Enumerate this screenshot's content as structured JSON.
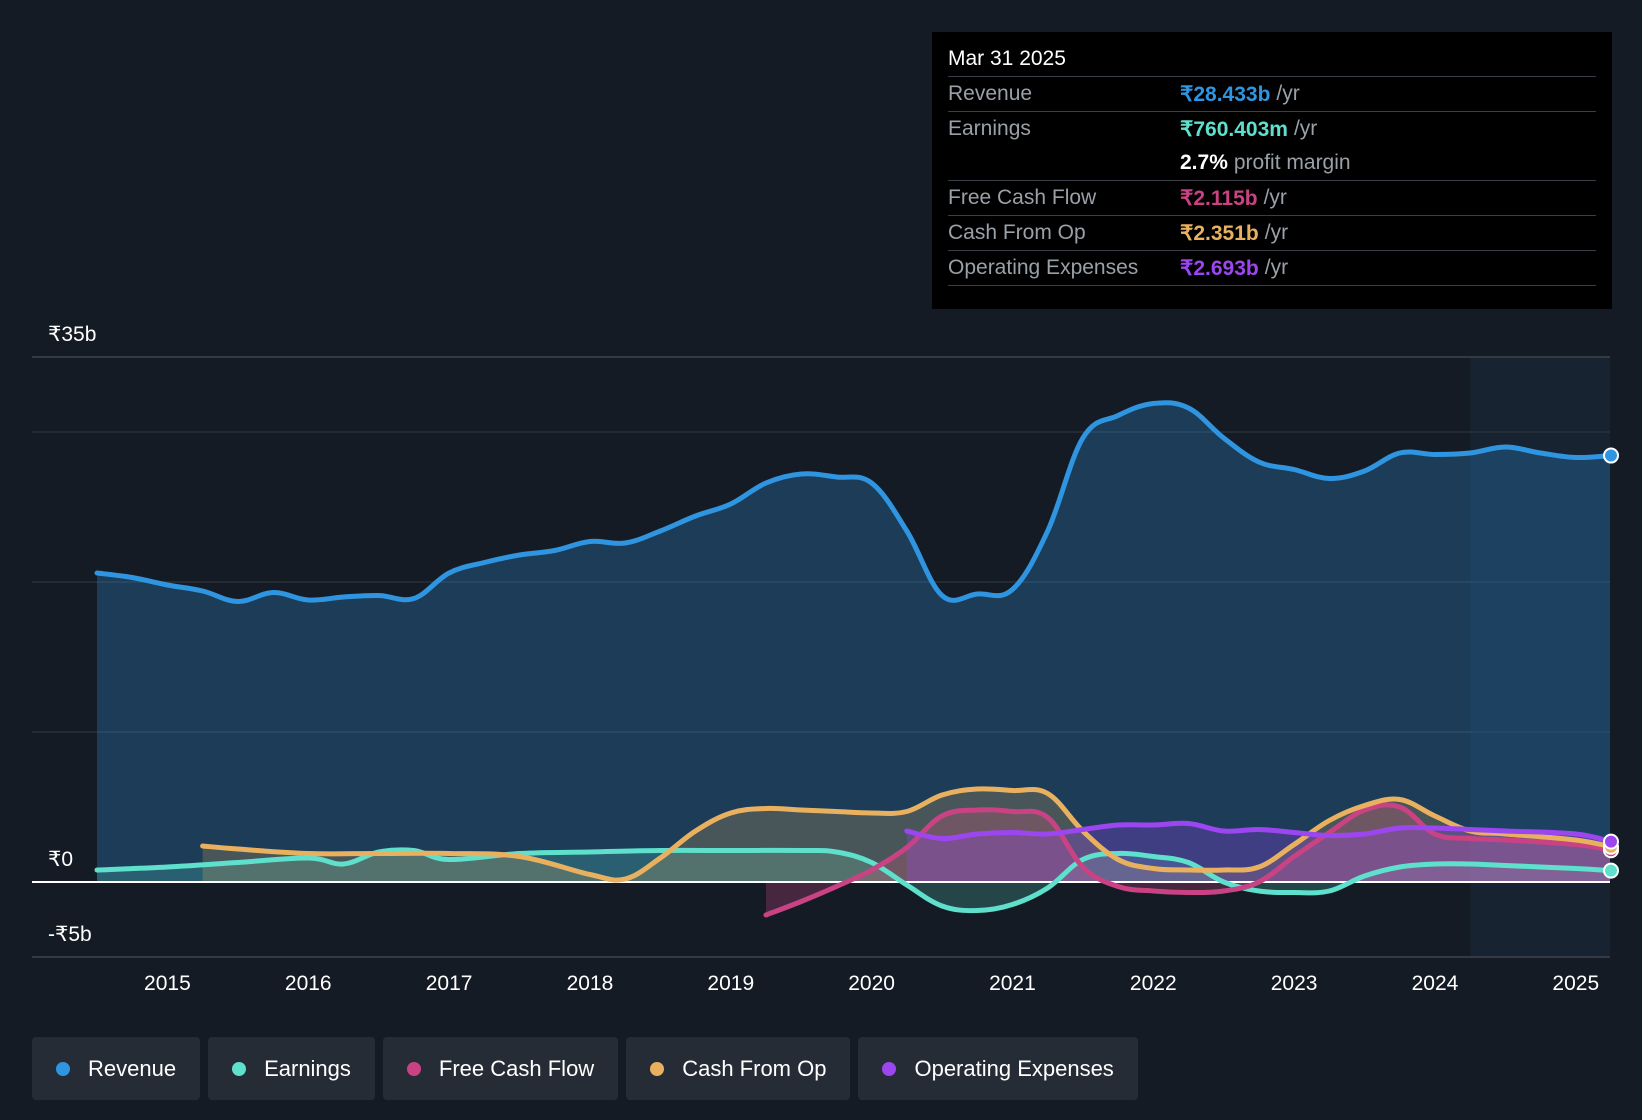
{
  "tooltip": {
    "date": "Mar 31 2025",
    "rows": [
      {
        "label": "Revenue",
        "value": "₹28.433b",
        "unit": "/yr",
        "color": "#2f95e0"
      },
      {
        "label": "Earnings",
        "value": "₹760.403m",
        "unit": "/yr",
        "color": "#5ee0cc"
      },
      {
        "label": "",
        "value": "2.7%",
        "unit": "profit margin",
        "color": "#ffffff"
      },
      {
        "label": "Free Cash Flow",
        "value": "₹2.115b",
        "unit": "/yr",
        "color": "#c94384"
      },
      {
        "label": "Cash From Op",
        "value": "₹2.351b",
        "unit": "/yr",
        "color": "#e9b15f"
      },
      {
        "label": "Operating Expenses",
        "value": "₹2.693b",
        "unit": "/yr",
        "color": "#9c46f0"
      }
    ]
  },
  "legend": [
    {
      "label": "Revenue",
      "color": "#2f95e0"
    },
    {
      "label": "Earnings",
      "color": "#5ee0cc"
    },
    {
      "label": "Free Cash Flow",
      "color": "#c94384"
    },
    {
      "label": "Cash From Op",
      "color": "#e9b15f"
    },
    {
      "label": "Operating Expenses",
      "color": "#9c46f0"
    }
  ],
  "chart_data": {
    "type": "area",
    "title": "",
    "xlabel": "",
    "ylabel": "",
    "ylim": [
      -5,
      35
    ],
    "xlim": [
      2014.5,
      2025.25
    ],
    "y_tick_labels": [
      {
        "value": 35,
        "label": "₹35b"
      },
      {
        "value": 0,
        "label": "₹0"
      },
      {
        "value": -5,
        "label": "-₹5b"
      }
    ],
    "x_tick_labels": [
      {
        "value": 2015,
        "label": "2015"
      },
      {
        "value": 2016,
        "label": "2016"
      },
      {
        "value": 2017,
        "label": "2017"
      },
      {
        "value": 2018,
        "label": "2018"
      },
      {
        "value": 2019,
        "label": "2019"
      },
      {
        "value": 2020,
        "label": "2020"
      },
      {
        "value": 2021,
        "label": "2021"
      },
      {
        "value": 2022,
        "label": "2022"
      },
      {
        "value": 2023,
        "label": "2023"
      },
      {
        "value": 2024,
        "label": "2024"
      },
      {
        "value": 2025,
        "label": "2025"
      }
    ],
    "gridlines": [
      35,
      30,
      20,
      10,
      0,
      -5
    ],
    "forecast_start": 2024.25,
    "series": [
      {
        "name": "Revenue",
        "color": "#2f95e0",
        "x": [
          2014.5,
          2014.75,
          2015.0,
          2015.25,
          2015.5,
          2015.75,
          2016.0,
          2016.25,
          2016.5,
          2016.75,
          2017.0,
          2017.25,
          2017.5,
          2017.75,
          2018.0,
          2018.25,
          2018.5,
          2018.75,
          2019.0,
          2019.25,
          2019.5,
          2019.75,
          2020.0,
          2020.25,
          2020.5,
          2020.75,
          2021.0,
          2021.25,
          2021.5,
          2021.75,
          2022.0,
          2022.25,
          2022.5,
          2022.75,
          2023.0,
          2023.25,
          2023.5,
          2023.75,
          2024.0,
          2024.25,
          2024.5,
          2024.75,
          2025.0,
          2025.25
        ],
        "values": [
          20.6,
          20.3,
          19.8,
          19.4,
          18.7,
          19.3,
          18.8,
          19.0,
          19.1,
          18.9,
          20.6,
          21.3,
          21.8,
          22.1,
          22.7,
          22.6,
          23.4,
          24.4,
          25.2,
          26.6,
          27.2,
          27.0,
          26.6,
          23.4,
          19.1,
          19.2,
          19.5,
          23.4,
          29.6,
          31.1,
          31.9,
          31.6,
          29.6,
          28.0,
          27.5,
          26.9,
          27.4,
          28.6,
          28.5,
          28.6,
          29.0,
          28.6,
          28.3,
          28.43
        ]
      },
      {
        "name": "Earnings",
        "color": "#5ee0cc",
        "x": [
          2014.5,
          2015.0,
          2015.5,
          2016.0,
          2016.25,
          2016.5,
          2016.75,
          2017.0,
          2017.5,
          2018.0,
          2018.5,
          2019.0,
          2019.5,
          2019.75,
          2020.0,
          2020.25,
          2020.5,
          2020.75,
          2021.0,
          2021.25,
          2021.5,
          2021.75,
          2022.0,
          2022.25,
          2022.5,
          2022.75,
          2023.0,
          2023.25,
          2023.5,
          2023.75,
          2024.0,
          2024.25,
          2024.5,
          2025.0,
          2025.25
        ],
        "values": [
          0.8,
          1.0,
          1.3,
          1.6,
          1.2,
          2.0,
          2.1,
          1.5,
          1.9,
          2.0,
          2.1,
          2.1,
          2.1,
          2.0,
          1.3,
          -0.2,
          -1.6,
          -1.9,
          -1.5,
          -0.4,
          1.5,
          1.9,
          1.7,
          1.3,
          0.0,
          -0.6,
          -0.7,
          -0.6,
          0.4,
          1.0,
          1.2,
          1.2,
          1.1,
          0.9,
          0.76
        ]
      },
      {
        "name": "Free Cash Flow",
        "color": "#c94384",
        "x": [
          2019.25,
          2019.5,
          2019.75,
          2020.0,
          2020.25,
          2020.5,
          2020.75,
          2021.0,
          2021.25,
          2021.5,
          2021.75,
          2022.0,
          2022.25,
          2022.5,
          2022.75,
          2023.0,
          2023.25,
          2023.5,
          2023.75,
          2024.0,
          2024.25,
          2024.5,
          2025.0,
          2025.25
        ],
        "values": [
          -2.2,
          -1.3,
          -0.3,
          0.8,
          2.3,
          4.4,
          4.8,
          4.7,
          4.3,
          1.0,
          -0.3,
          -0.6,
          -0.7,
          -0.6,
          0.0,
          1.7,
          3.3,
          4.8,
          5.0,
          3.2,
          2.9,
          2.8,
          2.5,
          2.12
        ]
      },
      {
        "name": "Cash From Op",
        "color": "#e9b15f",
        "x": [
          2015.25,
          2015.5,
          2016.0,
          2016.5,
          2017.0,
          2017.5,
          2018.0,
          2018.25,
          2018.5,
          2018.75,
          2019.0,
          2019.25,
          2019.5,
          2019.75,
          2020.0,
          2020.25,
          2020.5,
          2020.75,
          2021.0,
          2021.25,
          2021.5,
          2021.75,
          2022.0,
          2022.25,
          2022.5,
          2022.75,
          2023.0,
          2023.25,
          2023.5,
          2023.75,
          2024.0,
          2024.25,
          2024.5,
          2025.0,
          2025.25
        ],
        "values": [
          2.4,
          2.2,
          1.9,
          1.9,
          1.9,
          1.7,
          0.5,
          0.2,
          1.6,
          3.4,
          4.6,
          4.9,
          4.8,
          4.7,
          4.6,
          4.7,
          5.8,
          6.2,
          6.1,
          5.9,
          3.4,
          1.5,
          0.9,
          0.8,
          0.8,
          1.0,
          2.5,
          4.1,
          5.1,
          5.5,
          4.4,
          3.4,
          3.2,
          2.8,
          2.35
        ]
      },
      {
        "name": "Operating Expenses",
        "color": "#9c46f0",
        "x": [
          2020.25,
          2020.5,
          2020.75,
          2021.0,
          2021.25,
          2021.5,
          2021.75,
          2022.0,
          2022.25,
          2022.5,
          2022.75,
          2023.0,
          2023.25,
          2023.5,
          2023.75,
          2024.0,
          2024.25,
          2024.5,
          2025.0,
          2025.25
        ],
        "values": [
          3.4,
          2.9,
          3.2,
          3.3,
          3.2,
          3.5,
          3.8,
          3.8,
          3.9,
          3.4,
          3.5,
          3.3,
          3.1,
          3.2,
          3.6,
          3.6,
          3.5,
          3.4,
          3.2,
          2.69
        ]
      }
    ]
  }
}
